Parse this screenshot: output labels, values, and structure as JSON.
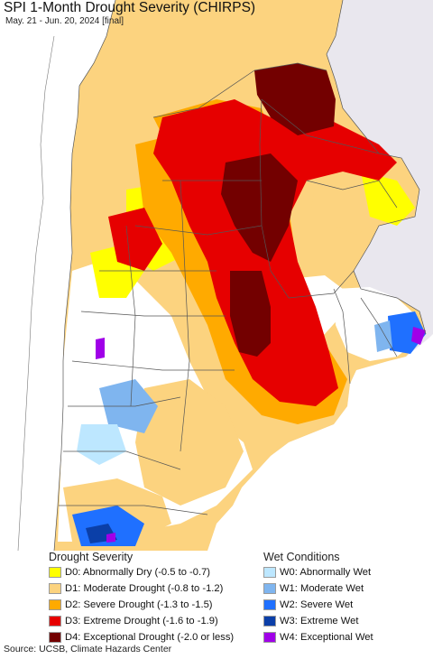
{
  "map": {
    "title": "SPI 1-Month Drought Severity (CHIRPS)",
    "subtitle": "May. 21 - Jun. 20, 2024 [final]"
  },
  "legend": {
    "drought_heading": "Drought Severity",
    "wet_heading": "Wet Conditions",
    "drought_items": [
      {
        "label": "D0: Abnormally Dry (-0.5 to -0.7)",
        "color": "#ffff00"
      },
      {
        "label": "D1: Moderate Drought (-0.8 to -1.2)",
        "color": "#fcd37f"
      },
      {
        "label": "D2: Severe Drought (-1.3 to -1.5)",
        "color": "#ffaa00"
      },
      {
        "label": "D3: Extreme Drought (-1.6 to -1.9)",
        "color": "#e60000"
      },
      {
        "label": "D4: Exceptional Drought (-2.0 or less)",
        "color": "#730000"
      }
    ],
    "wet_items": [
      {
        "label": "W0: Abnormally Wet",
        "color": "#bde7ff"
      },
      {
        "label": "W1: Moderate Wet",
        "color": "#7fb5ef"
      },
      {
        "label": "W2: Severe Wet",
        "color": "#1f70ff"
      },
      {
        "label": "W3: Extreme Wet",
        "color": "#0b3fa8"
      },
      {
        "label": "W4: Exceptional Wet",
        "color": "#a000e8"
      }
    ]
  },
  "footer": {
    "source": "Source: UCSB, Climate Hazards Center"
  },
  "colors": {
    "ocean": "#ffffff",
    "outside_region": "#e9e7ee",
    "boundary": "#555555"
  }
}
